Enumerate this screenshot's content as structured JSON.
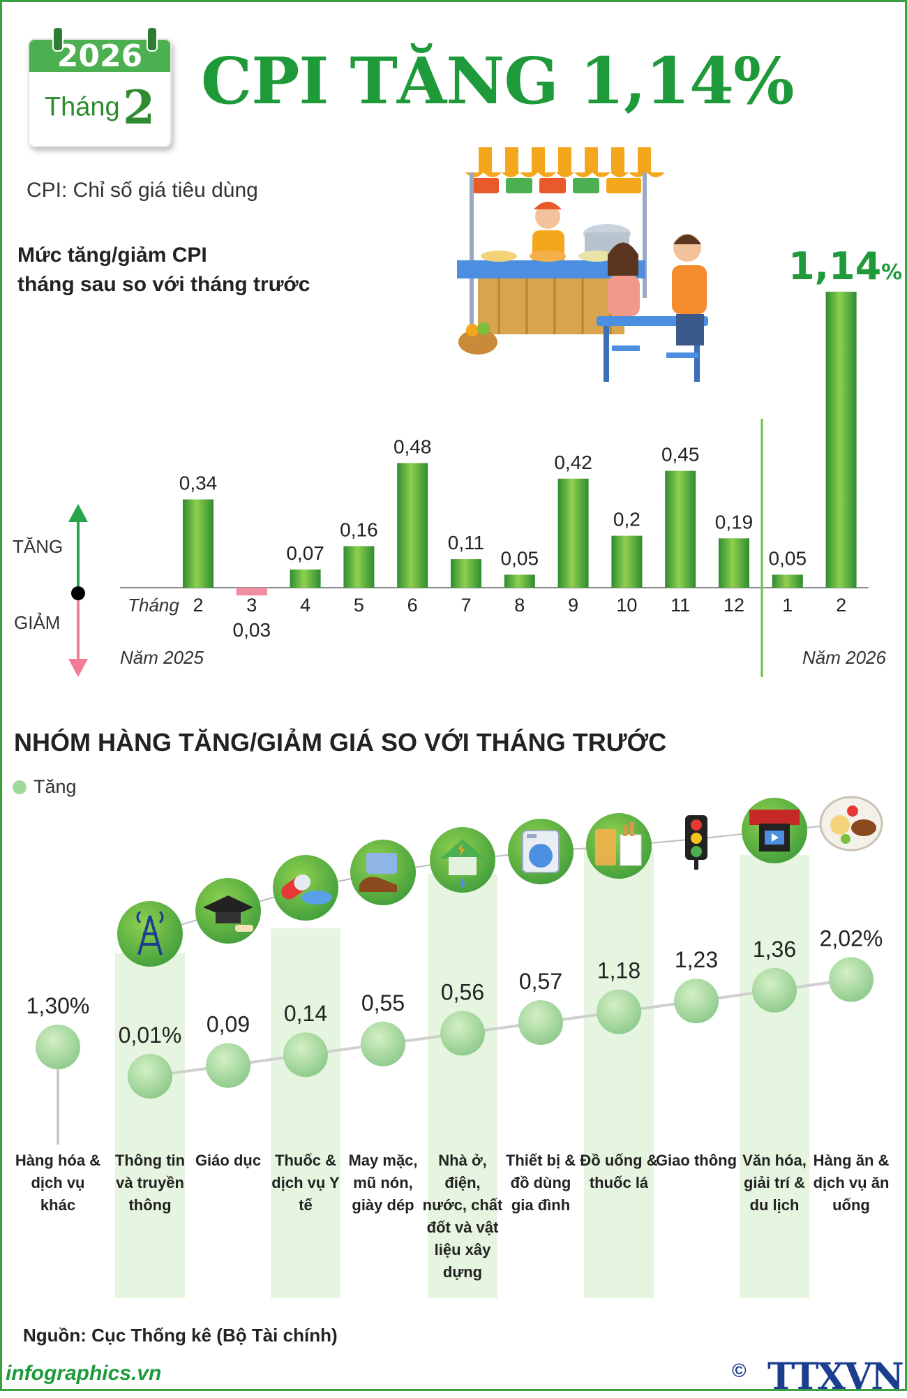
{
  "header": {
    "year": "2026",
    "month_label": "Tháng",
    "month_number": "2",
    "title": "CPI TĂNG 1,14%",
    "subtitle": "CPI: Chỉ số giá tiêu dùng",
    "section1_line1": "Mức tăng/giảm CPI",
    "section1_line2": "tháng sau so với tháng trước"
  },
  "legend1": {
    "up": "TĂNG",
    "down": "GIẢM",
    "month_prefix": "Tháng",
    "year1": "Năm 2025",
    "year2": "Năm 2026"
  },
  "colors": {
    "green_bar": "#4caf50",
    "pink_bar": "#f28ca0",
    "title_green": "#1e9a3a",
    "bubble": "#9fd89b"
  },
  "section2": {
    "title": "NHÓM HÀNG TĂNG/GIẢM GIÁ SO VỚI THÁNG TRƯỚC",
    "legend": "Tăng"
  },
  "chart_data": [
    {
      "type": "bar",
      "categories": [
        "2",
        "3",
        "4",
        "5",
        "6",
        "7",
        "8",
        "9",
        "10",
        "11",
        "12",
        "1",
        "2"
      ],
      "values": [
        0.34,
        -0.03,
        0.07,
        0.16,
        0.48,
        0.11,
        0.05,
        0.42,
        0.2,
        0.45,
        0.19,
        0.05,
        1.14
      ],
      "labels": [
        "0,34",
        "0,03",
        "0,07",
        "0,16",
        "0,48",
        "0,11",
        "0,05",
        "0,42",
        "0,2",
        "0,45",
        "0,19",
        "0,05",
        "1,14"
      ],
      "highlight_label": "1,14",
      "highlight_unit": "%"
    },
    {
      "type": "scatter",
      "categories": [
        "Hàng hóa & dịch vụ khác",
        "Thông tin và truyền thông",
        "Giáo dục",
        "Thuốc & dịch vụ Y tế",
        "May mặc, mũ nón, giày dép",
        "Nhà ở, điện, nước, chất đốt và vật liệu xây dựng",
        "Thiết bị & đồ dùng gia đình",
        "Đồ uống & thuốc lá",
        "Giao thông",
        "Văn hóa, giải trí & du lịch",
        "Hàng ăn & dịch vụ ăn uống"
      ],
      "values": [
        1.3,
        0.01,
        0.09,
        0.14,
        0.55,
        0.56,
        0.57,
        1.18,
        1.23,
        1.36,
        2.02
      ],
      "labels": [
        "1,30%",
        "0,01%",
        "0,09",
        "0,14",
        "0,55",
        "0,56",
        "0,57",
        "1,18",
        "1,23",
        "1,36",
        "2,02%"
      ],
      "icons": [
        "",
        "antenna-tower-icon",
        "graduation-cap-icon",
        "medicine-pill-icon",
        "clothing-shoes-icon",
        "house-water-power-icon",
        "washing-machine-icon",
        "drinks-cigarettes-icon",
        "traffic-light-icon",
        "cinema-film-icon",
        "food-plate-icon"
      ]
    }
  ],
  "footer": {
    "source": "Nguồn: Cục Thống kê (Bộ Tài chính)",
    "site": "infographics.vn",
    "copyright": "©",
    "brand": "TTXVN"
  }
}
